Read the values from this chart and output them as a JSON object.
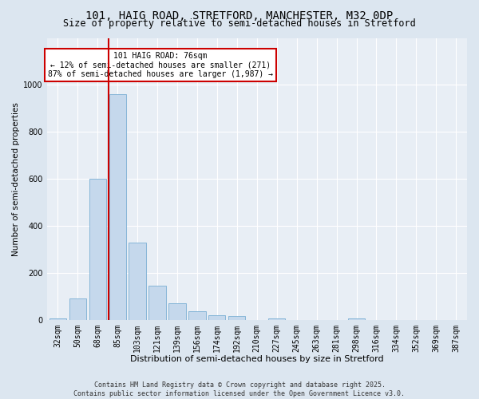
{
  "title1": "101, HAIG ROAD, STRETFORD, MANCHESTER, M32 0DP",
  "title2": "Size of property relative to semi-detached houses in Stretford",
  "xlabel": "Distribution of semi-detached houses by size in Stretford",
  "ylabel": "Number of semi-detached properties",
  "bin_labels": [
    "32sqm",
    "50sqm",
    "68sqm",
    "85sqm",
    "103sqm",
    "121sqm",
    "139sqm",
    "156sqm",
    "174sqm",
    "192sqm",
    "210sqm",
    "227sqm",
    "245sqm",
    "263sqm",
    "281sqm",
    "298sqm",
    "316sqm",
    "334sqm",
    "352sqm",
    "369sqm",
    "387sqm"
  ],
  "bin_values": [
    5,
    90,
    600,
    960,
    330,
    145,
    70,
    35,
    20,
    15,
    0,
    5,
    0,
    0,
    0,
    5,
    0,
    0,
    0,
    0,
    0
  ],
  "bar_color": "#c5d8ec",
  "bar_edge_color": "#7aafd4",
  "vline_x_index": 2.57,
  "vline_color": "#cc0000",
  "annotation_text": "101 HAIG ROAD: 76sqm\n← 12% of semi-detached houses are smaller (271)\n87% of semi-detached houses are larger (1,987) →",
  "annotation_box_color": "#ffffff",
  "annotation_box_edge": "#cc0000",
  "ylim": [
    0,
    1200
  ],
  "yticks": [
    0,
    200,
    400,
    600,
    800,
    1000
  ],
  "footer_text": "Contains HM Land Registry data © Crown copyright and database right 2025.\nContains public sector information licensed under the Open Government Licence v3.0.",
  "bg_color": "#dce6f0",
  "plot_bg_color": "#e8eef5",
  "title1_fontsize": 10,
  "title2_fontsize": 8.5,
  "xlabel_fontsize": 8,
  "ylabel_fontsize": 7.5,
  "tick_fontsize": 7,
  "footer_fontsize": 6,
  "annot_fontsize": 7
}
